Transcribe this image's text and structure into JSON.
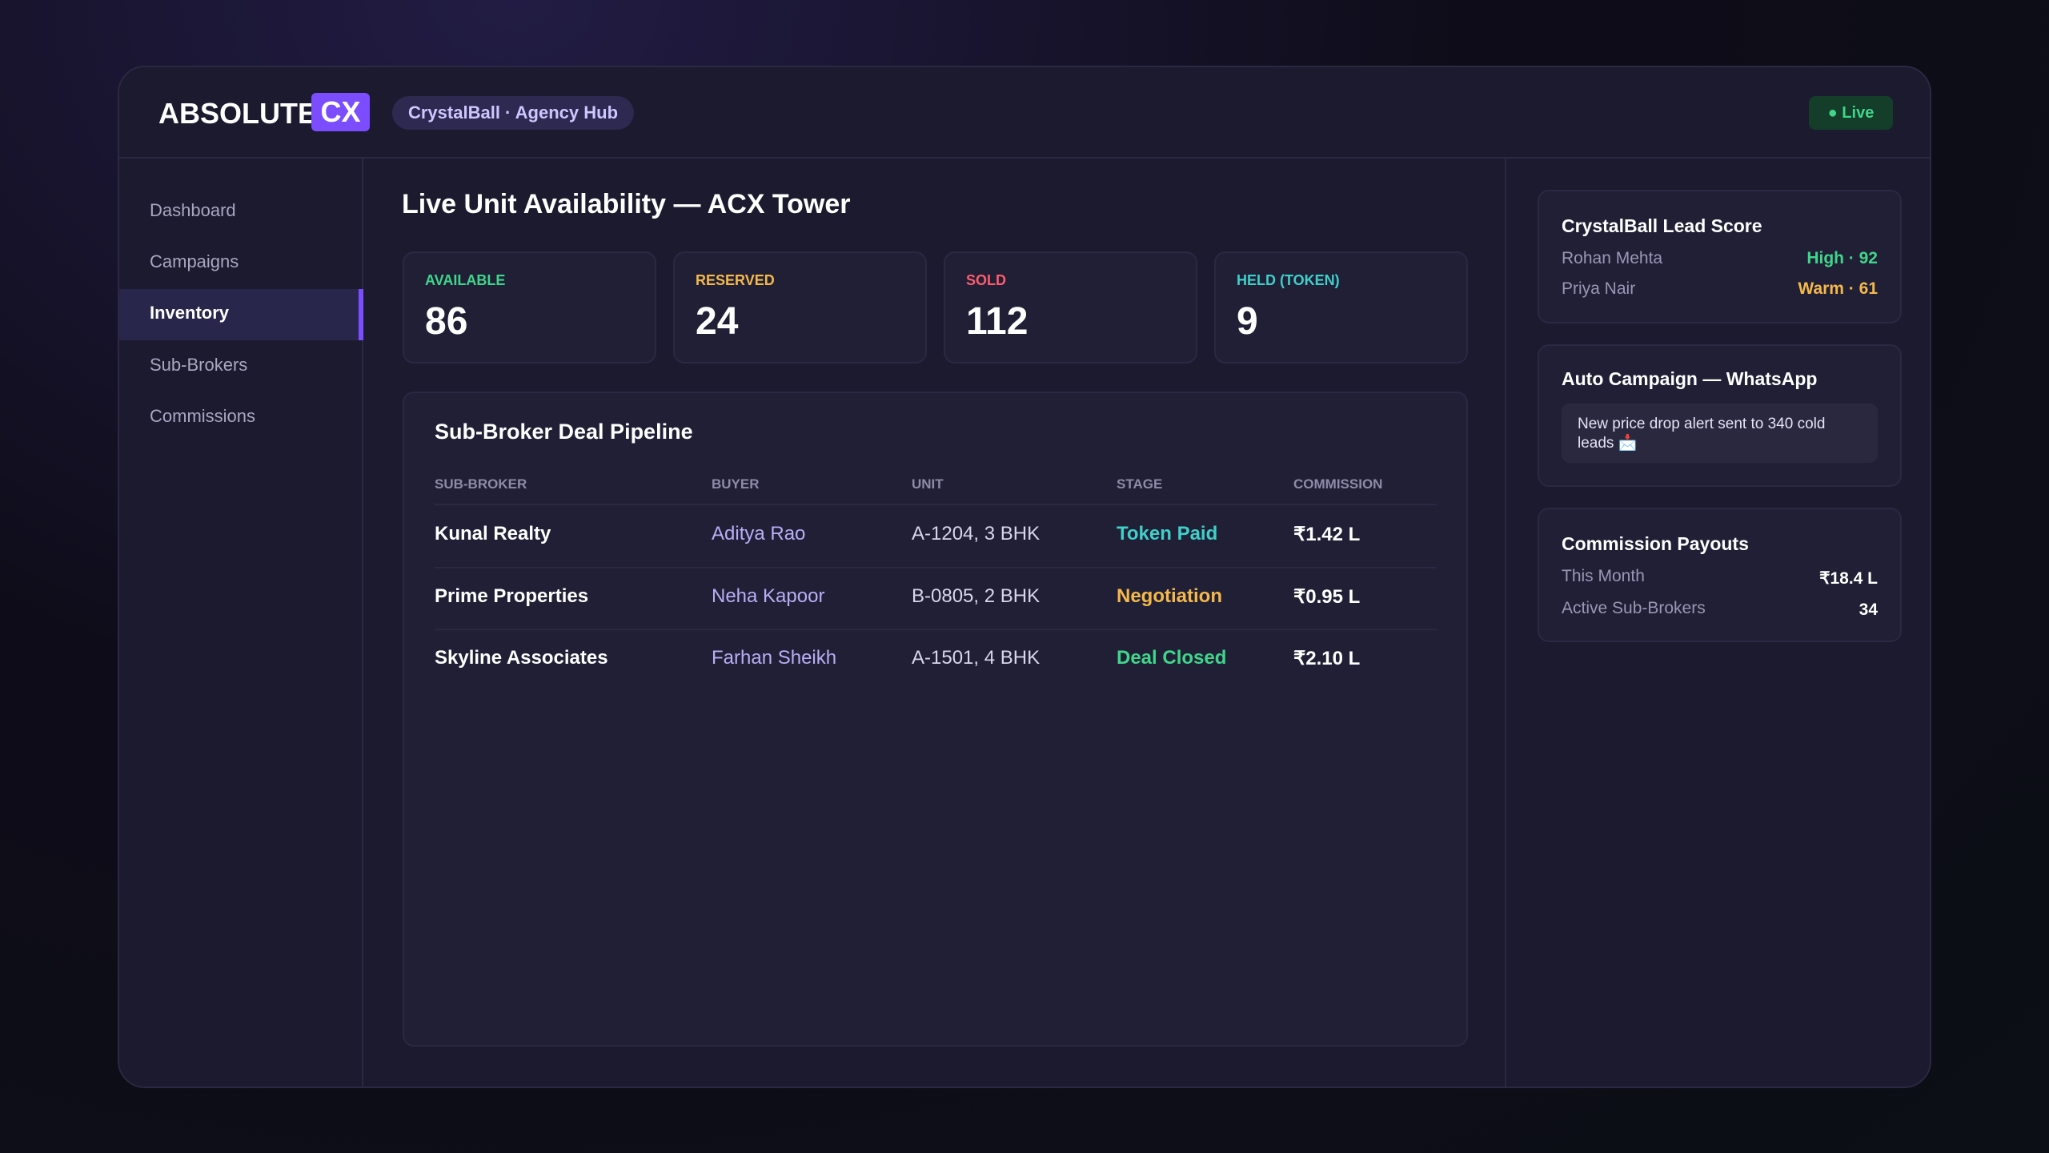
{
  "header": {
    "logo_main": "ABSOLUTE",
    "logo_accent": "CX",
    "badge": "CrystalBall · Agency Hub",
    "status": "● Live"
  },
  "nav": [
    "Dashboard",
    "Campaigns",
    "Inventory",
    "Sub-Brokers",
    "Commissions"
  ],
  "main": {
    "title": "Live Unit Availability — ACX Tower",
    "stats": [
      {
        "label": "AVAILABLE",
        "value": "86"
      },
      {
        "label": "RESERVED",
        "value": "24"
      },
      {
        "label": "SOLD",
        "value": "112"
      },
      {
        "label": "HELD (TOKEN)",
        "value": "9"
      }
    ],
    "pipeline": {
      "title": "Sub-Broker Deal Pipeline",
      "columns": [
        "SUB-BROKER",
        "BUYER",
        "UNIT",
        "STAGE",
        "COMMISSION"
      ],
      "rows": [
        [
          "Kunal Realty",
          "Aditya Rao",
          "A-1204, 3 BHK",
          "Token Paid",
          "₹1.42 L"
        ],
        [
          "Prime Properties",
          "Neha Kapoor",
          "B-0805, 2 BHK",
          "Negotiation",
          "₹0.95 L"
        ],
        [
          "Skyline Associates",
          "Farhan Sheikh",
          "A-1501, 4 BHK",
          "Deal Closed",
          "₹2.10 L"
        ]
      ]
    }
  },
  "side": {
    "lead_score": {
      "title": "CrystalBall Lead Score",
      "rows": [
        [
          "Rohan Mehta",
          "High · 92"
        ],
        [
          "Priya Nair",
          "Warm · 61"
        ]
      ]
    },
    "campaign": {
      "title": "Auto Campaign — WhatsApp",
      "message": "New price drop alert sent to 340 cold leads 📩"
    },
    "payouts": {
      "title": "Commission Payouts",
      "rows": [
        [
          "This Month",
          "₹18.4 L"
        ],
        [
          "Active Sub-Brokers",
          "34"
        ]
      ]
    }
  }
}
